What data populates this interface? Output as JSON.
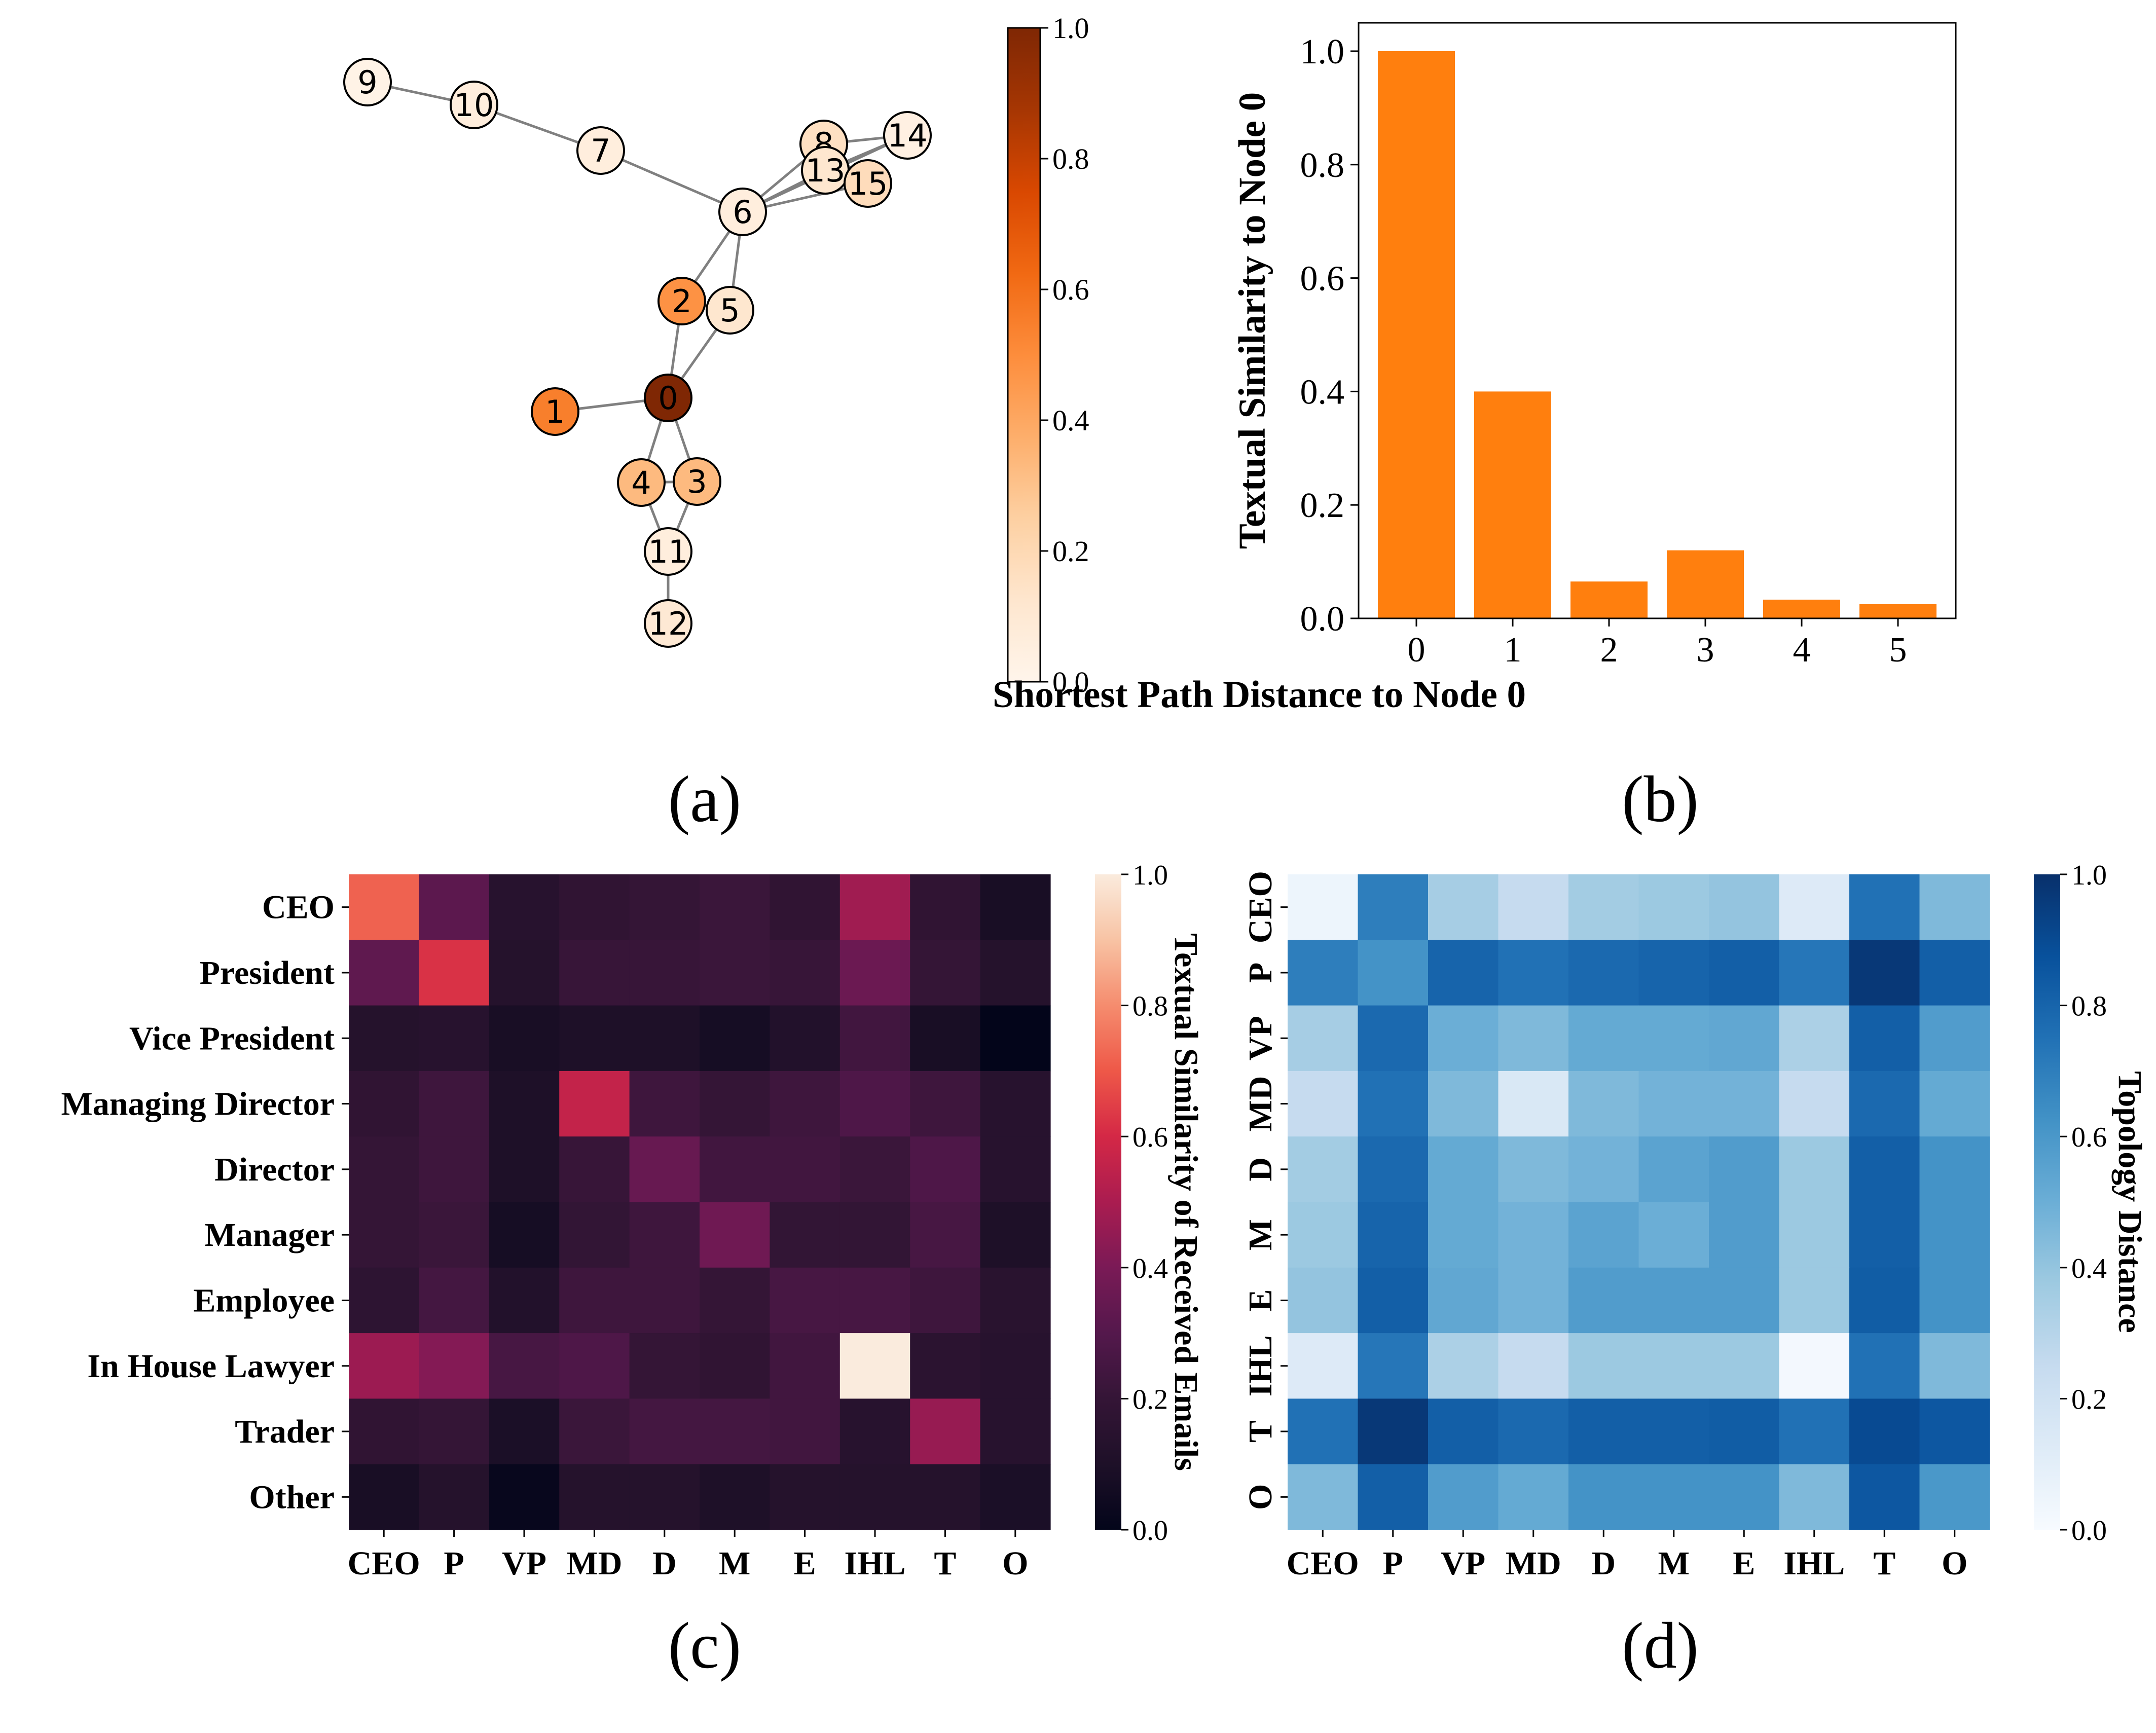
{
  "panel_labels": [
    "(a)",
    "(b)",
    "(c)",
    "(d)"
  ],
  "chart_data": [
    {
      "type": "network",
      "panel": "(a)",
      "nodes": [
        {
          "id": "0",
          "value": 1.0
        },
        {
          "id": "1",
          "value": 0.55
        },
        {
          "id": "2",
          "value": 0.48
        },
        {
          "id": "3",
          "value": 0.33
        },
        {
          "id": "4",
          "value": 0.33
        },
        {
          "id": "5",
          "value": 0.12
        },
        {
          "id": "6",
          "value": 0.06
        },
        {
          "id": "7",
          "value": 0.06
        },
        {
          "id": "8",
          "value": 0.16
        },
        {
          "id": "9",
          "value": 0.02
        },
        {
          "id": "10",
          "value": 0.06
        },
        {
          "id": "11",
          "value": 0.06
        },
        {
          "id": "12",
          "value": 0.1
        },
        {
          "id": "13",
          "value": 0.12
        },
        {
          "id": "14",
          "value": 0.04
        },
        {
          "id": "15",
          "value": 0.18
        }
      ],
      "edges": [
        [
          "9",
          "10"
        ],
        [
          "10",
          "7"
        ],
        [
          "7",
          "6"
        ],
        [
          "6",
          "8"
        ],
        [
          "6",
          "13"
        ],
        [
          "6",
          "15"
        ],
        [
          "6",
          "14"
        ],
        [
          "8",
          "13"
        ],
        [
          "8",
          "14"
        ],
        [
          "8",
          "15"
        ],
        [
          "13",
          "15"
        ],
        [
          "13",
          "14"
        ],
        [
          "6",
          "2"
        ],
        [
          "6",
          "5"
        ],
        [
          "2",
          "5"
        ],
        [
          "2",
          "0"
        ],
        [
          "5",
          "0"
        ],
        [
          "0",
          "1"
        ],
        [
          "0",
          "4"
        ],
        [
          "0",
          "3"
        ],
        [
          "4",
          "3"
        ],
        [
          "4",
          "11"
        ],
        [
          "3",
          "11"
        ],
        [
          "11",
          "12"
        ]
      ],
      "colorbar": {
        "range": [
          0.0,
          1.0
        ],
        "ticks": [
          "0.0",
          "0.2",
          "0.4",
          "0.6",
          "0.8",
          "1.0"
        ],
        "colormap": "Oranges"
      }
    },
    {
      "type": "bar",
      "panel": "(b)",
      "categories": [
        "0",
        "1",
        "2",
        "3",
        "4",
        "5"
      ],
      "values": [
        1.0,
        0.4,
        0.065,
        0.12,
        0.033,
        0.025
      ],
      "xlabel": "Shortest Path Distance to Node 0",
      "ylabel": "Textual Similarity to Node 0",
      "ylim": [
        0,
        1.05
      ],
      "yticks": [
        "0.0",
        "0.2",
        "0.4",
        "0.6",
        "0.8",
        "1.0"
      ],
      "color": "#ff7f0e"
    },
    {
      "type": "heatmap",
      "panel": "(c)",
      "row_labels": [
        "CEO",
        "President",
        "Vice President",
        "Managing Director",
        "Director",
        "Manager",
        "Employee",
        "In House Lawyer",
        "Trader",
        "Other"
      ],
      "col_labels": [
        "CEO",
        "P",
        "VP",
        "MD",
        "D",
        "M",
        "E",
        "IHL",
        "T",
        "O"
      ],
      "values": [
        [
          0.72,
          0.32,
          0.14,
          0.18,
          0.2,
          0.22,
          0.18,
          0.48,
          0.18,
          0.08
        ],
        [
          0.33,
          0.62,
          0.13,
          0.21,
          0.21,
          0.22,
          0.21,
          0.36,
          0.2,
          0.13
        ],
        [
          0.13,
          0.14,
          0.08,
          0.1,
          0.1,
          0.07,
          0.12,
          0.24,
          0.08,
          0.0
        ],
        [
          0.18,
          0.23,
          0.1,
          0.56,
          0.23,
          0.2,
          0.23,
          0.28,
          0.23,
          0.14
        ],
        [
          0.2,
          0.23,
          0.1,
          0.21,
          0.35,
          0.24,
          0.24,
          0.22,
          0.28,
          0.14
        ],
        [
          0.2,
          0.22,
          0.07,
          0.19,
          0.23,
          0.37,
          0.19,
          0.19,
          0.26,
          0.1
        ],
        [
          0.17,
          0.25,
          0.12,
          0.23,
          0.23,
          0.2,
          0.26,
          0.26,
          0.23,
          0.15
        ],
        [
          0.47,
          0.42,
          0.26,
          0.28,
          0.2,
          0.18,
          0.24,
          1.0,
          0.16,
          0.14
        ],
        [
          0.18,
          0.2,
          0.09,
          0.22,
          0.25,
          0.25,
          0.24,
          0.14,
          0.46,
          0.14
        ],
        [
          0.08,
          0.13,
          0.02,
          0.13,
          0.13,
          0.1,
          0.13,
          0.13,
          0.13,
          0.09
        ]
      ],
      "colorbar": {
        "label": "Textual Similarity of Received Emails",
        "range": [
          0.0,
          1.0
        ],
        "ticks": [
          "0.0",
          "0.2",
          "0.4",
          "0.6",
          "0.8",
          "1.0"
        ],
        "colormap": "rocket"
      }
    },
    {
      "type": "heatmap",
      "panel": "(d)",
      "row_labels": [
        "CEO",
        "P",
        "VP",
        "MD",
        "D",
        "M",
        "E",
        "IHL",
        "T",
        "O"
      ],
      "col_labels": [
        "CEO",
        "P",
        "VP",
        "MD",
        "D",
        "M",
        "E",
        "IHL",
        "T",
        "O"
      ],
      "values": [
        [
          0.05,
          0.7,
          0.35,
          0.25,
          0.36,
          0.38,
          0.4,
          0.13,
          0.75,
          0.45
        ],
        [
          0.7,
          0.62,
          0.8,
          0.75,
          0.78,
          0.8,
          0.82,
          0.73,
          0.97,
          0.82
        ],
        [
          0.35,
          0.78,
          0.5,
          0.45,
          0.52,
          0.52,
          0.53,
          0.33,
          0.82,
          0.58
        ],
        [
          0.25,
          0.75,
          0.45,
          0.15,
          0.45,
          0.48,
          0.48,
          0.25,
          0.78,
          0.52
        ],
        [
          0.36,
          0.78,
          0.52,
          0.45,
          0.48,
          0.55,
          0.58,
          0.38,
          0.82,
          0.62
        ],
        [
          0.38,
          0.8,
          0.52,
          0.48,
          0.55,
          0.5,
          0.58,
          0.38,
          0.82,
          0.62
        ],
        [
          0.4,
          0.82,
          0.53,
          0.48,
          0.58,
          0.58,
          0.58,
          0.38,
          0.83,
          0.62
        ],
        [
          0.13,
          0.73,
          0.33,
          0.25,
          0.38,
          0.38,
          0.38,
          0.02,
          0.75,
          0.45
        ],
        [
          0.75,
          0.97,
          0.82,
          0.78,
          0.82,
          0.82,
          0.83,
          0.75,
          0.9,
          0.85
        ],
        [
          0.45,
          0.82,
          0.58,
          0.52,
          0.62,
          0.62,
          0.62,
          0.45,
          0.85,
          0.6
        ]
      ],
      "colorbar": {
        "label": "Topology Distance",
        "range": [
          0.0,
          1.0
        ],
        "ticks": [
          "0.0",
          "0.2",
          "0.4",
          "0.6",
          "0.8",
          "1.0"
        ],
        "colormap": "Blues"
      }
    }
  ]
}
